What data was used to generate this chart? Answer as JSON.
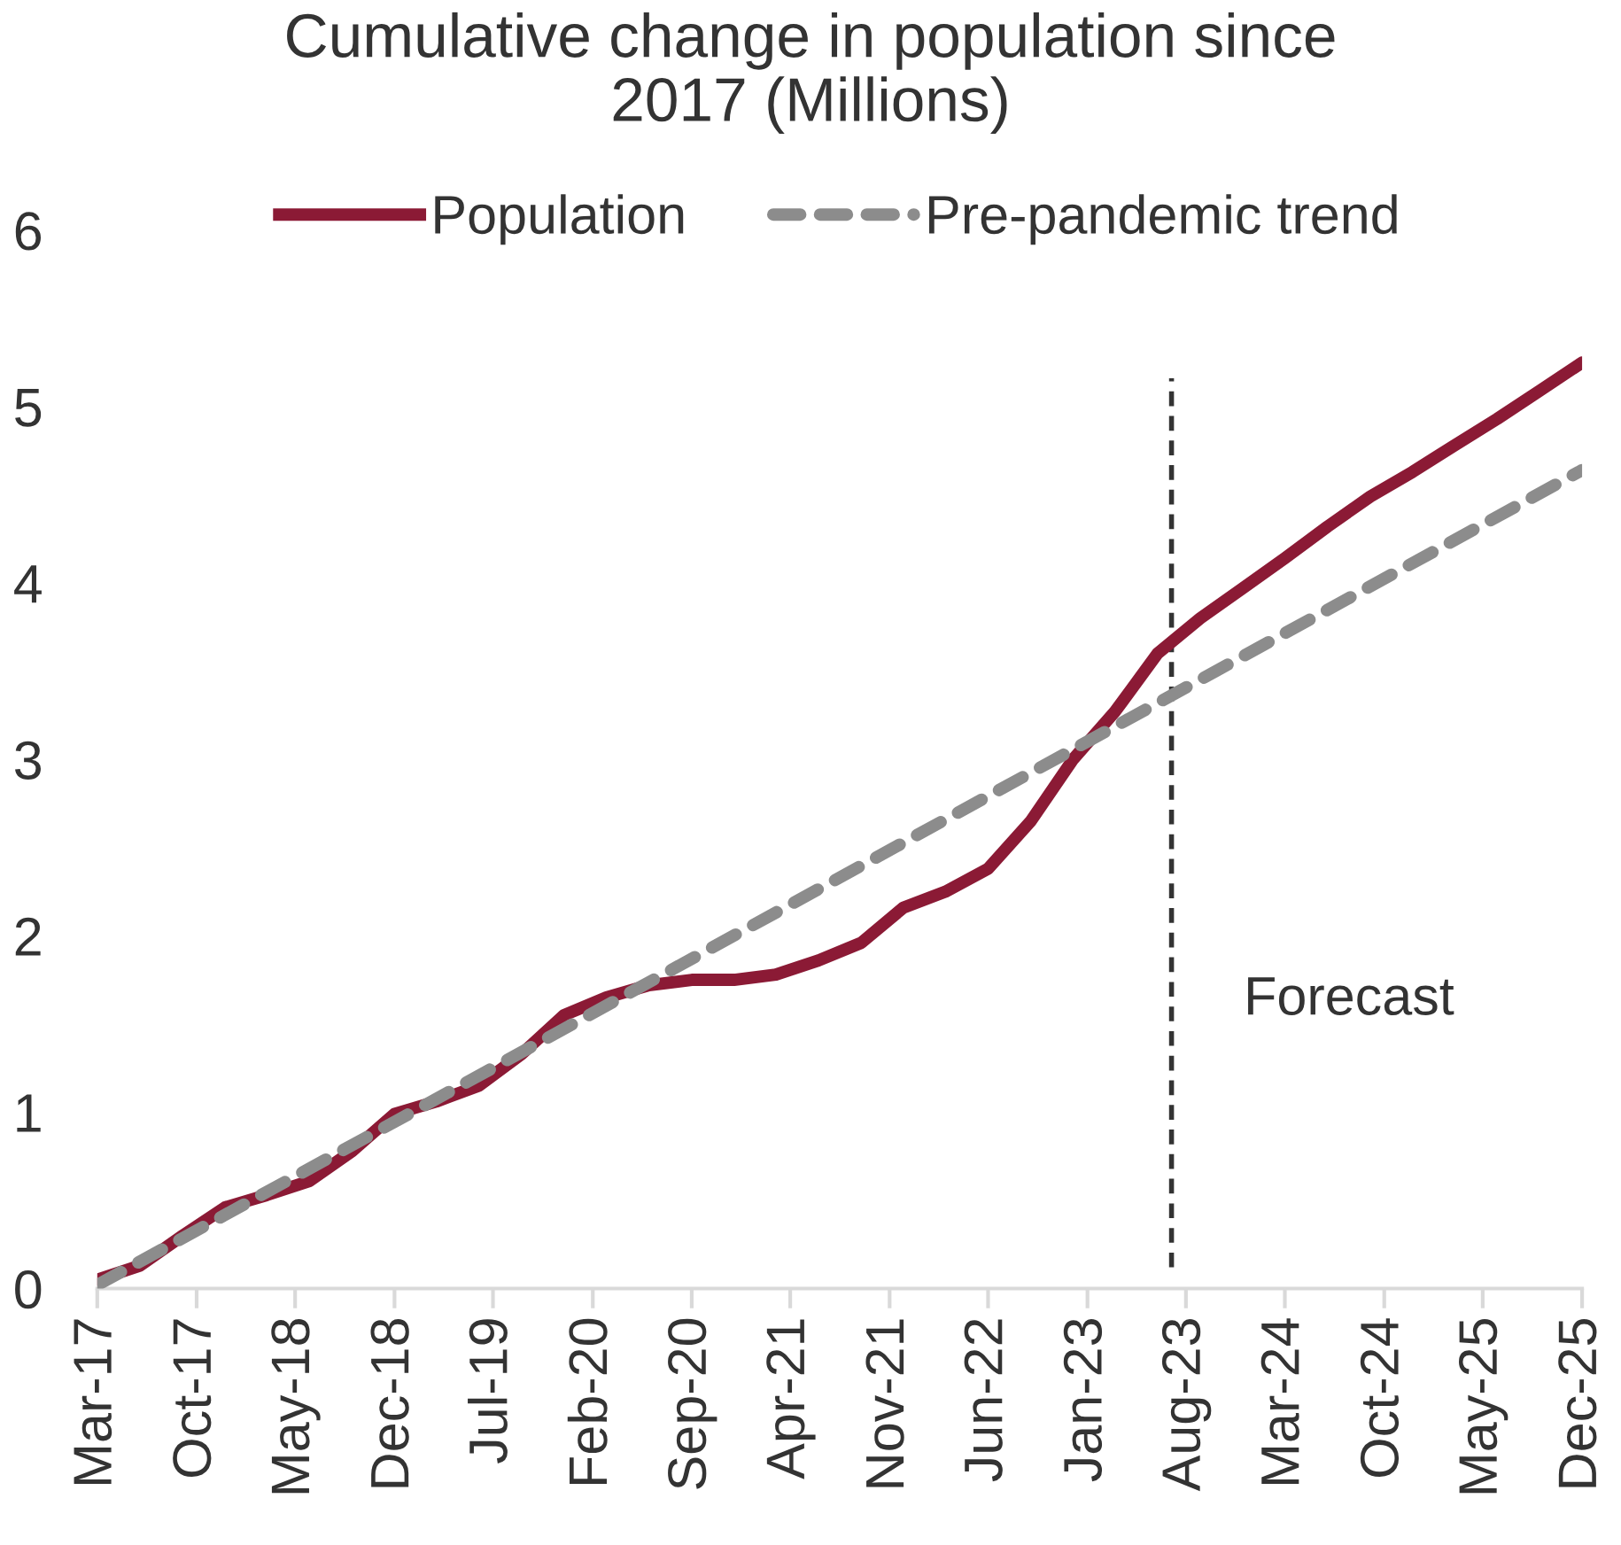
{
  "chart_data": {
    "type": "line",
    "title": "Cumulative change in population since\n2017 (Millions)",
    "series": [
      {
        "name": "Population",
        "color": "#8b1a35",
        "line_style": "solid",
        "x": [
          "2017-03",
          "2017-06",
          "2017-09",
          "2017-12",
          "2018-03",
          "2018-06",
          "2018-09",
          "2018-12",
          "2019-03",
          "2019-06",
          "2019-09",
          "2019-12",
          "2020-03",
          "2020-06",
          "2020-09",
          "2020-12",
          "2021-03",
          "2021-06",
          "2021-09",
          "2021-12",
          "2022-03",
          "2022-06",
          "2022-09",
          "2022-12",
          "2023-03",
          "2023-06",
          "2023-09",
          "2023-12",
          "2024-03",
          "2024-06",
          "2024-09",
          "2024-12",
          "2025-03",
          "2025-06",
          "2025-09",
          "2025-12"
        ],
        "values": [
          0.05,
          0.13,
          0.3,
          0.46,
          0.53,
          0.61,
          0.78,
          0.99,
          1.06,
          1.15,
          1.33,
          1.55,
          1.65,
          1.72,
          1.75,
          1.75,
          1.78,
          1.86,
          1.96,
          2.16,
          2.25,
          2.38,
          2.65,
          3.0,
          3.27,
          3.6,
          3.8,
          3.97,
          4.14,
          4.32,
          4.49,
          4.63,
          4.78,
          4.93,
          5.09,
          5.25
        ]
      },
      {
        "name": "Pre-pandemic trend",
        "color": "#8c8c8c",
        "line_style": "dashed",
        "x": [
          "2017-03",
          "2025-12"
        ],
        "values": [
          0.02,
          4.64
        ]
      }
    ],
    "xlim": [
      "2017-03",
      "2025-12"
    ],
    "xticks": [
      {
        "value": "2017-03",
        "label": "Mar-17"
      },
      {
        "value": "2017-10",
        "label": "Oct-17"
      },
      {
        "value": "2018-05",
        "label": "May-18"
      },
      {
        "value": "2018-12",
        "label": "Dec-18"
      },
      {
        "value": "2019-07",
        "label": "Jul-19"
      },
      {
        "value": "2020-02",
        "label": "Feb-20"
      },
      {
        "value": "2020-09",
        "label": "Sep-20"
      },
      {
        "value": "2021-04",
        "label": "Apr-21"
      },
      {
        "value": "2021-11",
        "label": "Nov-21"
      },
      {
        "value": "2022-06",
        "label": "Jun-22"
      },
      {
        "value": "2023-01",
        "label": "Jan-23"
      },
      {
        "value": "2023-08",
        "label": "Aug-23"
      },
      {
        "value": "2024-03",
        "label": "Mar-24"
      },
      {
        "value": "2024-10",
        "label": "Oct-24"
      },
      {
        "value": "2025-05",
        "label": "May-25"
      },
      {
        "value": "2025-12",
        "label": "Dec-25"
      }
    ],
    "ylim": [
      0,
      6
    ],
    "yticks": [
      0,
      1,
      2,
      3,
      4,
      5,
      6
    ],
    "ref_lines": [
      {
        "axis": "x",
        "value": "2023-07",
        "label": "Forecast",
        "color": "#333333",
        "line_style": "dashed"
      }
    ],
    "legend": "top",
    "grid": false,
    "marker": "none"
  }
}
